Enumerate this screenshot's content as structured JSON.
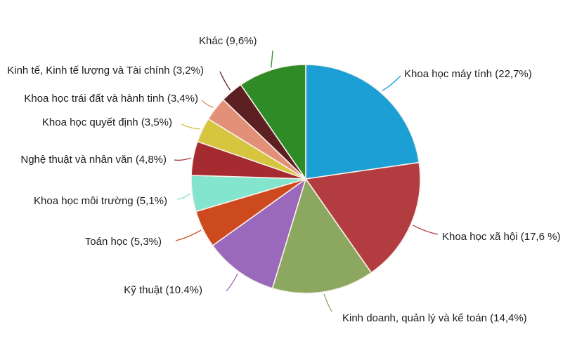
{
  "chart_data": {
    "type": "pie",
    "start_angle_deg": 0,
    "direction": "clockwise",
    "value_unit": "percent",
    "legend_position": "outside-labels",
    "background_color": "#ffffff",
    "slice_border_color": "#f9f1ea",
    "label_text_color": "#1c1c1c",
    "slices": [
      {
        "name": "Khoa học máy tính",
        "value": 22.7,
        "label": "Khoa học máy tính (22,7%)",
        "color": "#1C9FD4"
      },
      {
        "name": "Khoa học xã hội",
        "value": 17.6,
        "label": "Khoa học xã hội (17,6 %)",
        "color": "#B23C40"
      },
      {
        "name": "Kinh doanh, quản lý và kế toán",
        "value": 14.4,
        "label": "Kinh doanh, quản lý và kế toán (14,4%)",
        "color": "#8CA75F"
      },
      {
        "name": "Kỹ thuật",
        "value": 10.4,
        "label": "Kỹ thuật (10.4%)",
        "color": "#9A69BB"
      },
      {
        "name": "Toán học",
        "value": 5.3,
        "label": "Toán học (5,3%)",
        "color": "#CC4A1E"
      },
      {
        "name": "Khoa học môi trường",
        "value": 5.1,
        "label": "Khoa học môi trường (5,1%)",
        "color": "#84E5CF"
      },
      {
        "name": "Nghệ thuật và nhân văn",
        "value": 4.8,
        "label": "Nghệ thuật và nhân văn (4,8%)",
        "color": "#A52B30"
      },
      {
        "name": "Khoa học quyết định",
        "value": 3.5,
        "label": "Khoa học quyết định (3,5%)",
        "color": "#D6C53E"
      },
      {
        "name": "Khoa học trái đất và hành tinh",
        "value": 3.4,
        "label": "Khoa học trái đất và hành tinh (3,4%)",
        "color": "#E29077"
      },
      {
        "name": "Kinh tế, Kinh tế lượng và Tài chính",
        "value": 3.2,
        "label": "Kinh tế, Kinh tế lượng và Tài chính (3,2%)",
        "color": "#5C1F22"
      },
      {
        "name": "Khác",
        "value": 9.6,
        "label": "Khác (9,6%)",
        "color": "#2E8B25"
      }
    ]
  }
}
